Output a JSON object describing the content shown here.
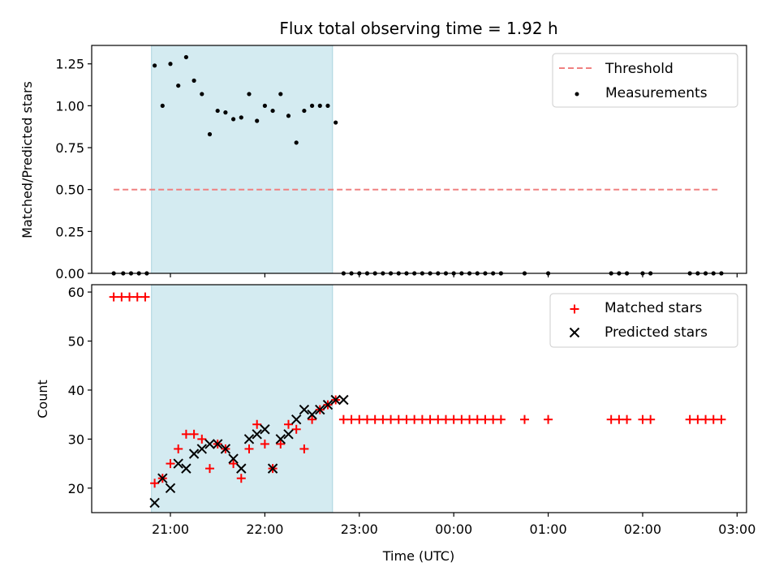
{
  "chart_data": [
    {
      "type": "scatter",
      "title": "Flux total observing time = 1.92 h",
      "xlabel": "",
      "ylabel": "Matched/Predicted stars",
      "xlim": [
        "20:10",
        "03:06"
      ],
      "ylim": [
        0,
        1.36
      ],
      "yticks": [
        0.0,
        0.25,
        0.5,
        0.75,
        1.0,
        1.25
      ],
      "ytick_labels": [
        "0.00",
        "0.25",
        "0.50",
        "0.75",
        "1.00",
        "1.25"
      ],
      "shaded_span": [
        "20:48",
        "22:43"
      ],
      "threshold": {
        "name": "Threshold",
        "value": 0.5,
        "x_range": [
          "20:24",
          "02:48"
        ],
        "color": "#f08080"
      },
      "series": [
        {
          "name": "Measurements",
          "color": "#000000",
          "points": [
            [
              "20:24",
              0
            ],
            [
              "20:30",
              0
            ],
            [
              "20:35",
              0
            ],
            [
              "20:40",
              0
            ],
            [
              "20:45",
              0
            ],
            [
              "20:50",
              1.24
            ],
            [
              "20:55",
              1.0
            ],
            [
              "21:00",
              1.25
            ],
            [
              "21:05",
              1.12
            ],
            [
              "21:10",
              1.29
            ],
            [
              "21:15",
              1.15
            ],
            [
              "21:20",
              1.07
            ],
            [
              "21:25",
              0.83
            ],
            [
              "21:30",
              0.97
            ],
            [
              "21:35",
              0.96
            ],
            [
              "21:40",
              0.92
            ],
            [
              "21:45",
              0.93
            ],
            [
              "21:50",
              1.07
            ],
            [
              "21:55",
              0.91
            ],
            [
              "22:00",
              1.0
            ],
            [
              "22:05",
              0.97
            ],
            [
              "22:10",
              1.07
            ],
            [
              "22:15",
              0.94
            ],
            [
              "22:20",
              0.78
            ],
            [
              "22:25",
              0.97
            ],
            [
              "22:30",
              1.0
            ],
            [
              "22:35",
              1.0
            ],
            [
              "22:40",
              1.0
            ],
            [
              "22:45",
              0.9
            ],
            [
              "22:50",
              0
            ],
            [
              "22:55",
              0
            ],
            [
              "23:00",
              0
            ],
            [
              "23:05",
              0
            ],
            [
              "23:10",
              0
            ],
            [
              "23:15",
              0
            ],
            [
              "23:20",
              0
            ],
            [
              "23:25",
              0
            ],
            [
              "23:30",
              0
            ],
            [
              "23:35",
              0
            ],
            [
              "23:40",
              0
            ],
            [
              "23:45",
              0
            ],
            [
              "23:50",
              0
            ],
            [
              "23:55",
              0
            ],
            [
              "00:00",
              0
            ],
            [
              "00:05",
              0
            ],
            [
              "00:10",
              0
            ],
            [
              "00:15",
              0
            ],
            [
              "00:20",
              0
            ],
            [
              "00:25",
              0
            ],
            [
              "00:30",
              0
            ],
            [
              "00:45",
              0
            ],
            [
              "01:00",
              0
            ],
            [
              "01:40",
              0
            ],
            [
              "01:45",
              0
            ],
            [
              "01:50",
              0
            ],
            [
              "02:00",
              0
            ],
            [
              "02:05",
              0
            ],
            [
              "02:30",
              0
            ],
            [
              "02:35",
              0
            ],
            [
              "02:40",
              0
            ],
            [
              "02:45",
              0
            ],
            [
              "02:50",
              0
            ]
          ]
        }
      ],
      "legend": {
        "placement": "top-right",
        "entries": [
          "Threshold",
          "Measurements"
        ]
      },
      "grid": false
    },
    {
      "type": "scatter",
      "title": "",
      "xlabel": "Time (UTC)",
      "ylabel": "Count",
      "xlim": [
        "20:10",
        "03:06"
      ],
      "ylim": [
        15,
        61.5
      ],
      "yticks": [
        20,
        30,
        40,
        50,
        60
      ],
      "ytick_labels": [
        "20",
        "30",
        "40",
        "50",
        "60"
      ],
      "xticks": [
        "21:00",
        "22:00",
        "23:00",
        "00:00",
        "01:00",
        "02:00",
        "03:00"
      ],
      "xtick_labels": [
        "21:00",
        "22:00",
        "23:00",
        "00:00",
        "01:00",
        "02:00",
        "03:00"
      ],
      "shaded_span": [
        "20:48",
        "22:43"
      ],
      "series": [
        {
          "name": "Matched stars",
          "marker": "plus",
          "color": "#ff0000",
          "points": [
            [
              "20:24",
              59
            ],
            [
              "20:29",
              59
            ],
            [
              "20:34",
              59
            ],
            [
              "20:39",
              59
            ],
            [
              "20:44",
              59
            ],
            [
              "20:50",
              21
            ],
            [
              "20:55",
              22
            ],
            [
              "21:00",
              25
            ],
            [
              "21:05",
              28
            ],
            [
              "21:10",
              31
            ],
            [
              "21:15",
              31
            ],
            [
              "21:20",
              30
            ],
            [
              "21:25",
              24
            ],
            [
              "21:30",
              29
            ],
            [
              "21:35",
              28
            ],
            [
              "21:40",
              25
            ],
            [
              "21:45",
              22
            ],
            [
              "21:50",
              28
            ],
            [
              "21:55",
              33
            ],
            [
              "22:00",
              29
            ],
            [
              "22:05",
              24
            ],
            [
              "22:10",
              29
            ],
            [
              "22:15",
              33
            ],
            [
              "22:20",
              32
            ],
            [
              "22:25",
              28
            ],
            [
              "22:30",
              34
            ],
            [
              "22:35",
              36
            ],
            [
              "22:40",
              37
            ],
            [
              "22:45",
              38
            ],
            [
              "22:50",
              34
            ],
            [
              "22:55",
              34
            ],
            [
              "23:00",
              34
            ],
            [
              "23:05",
              34
            ],
            [
              "23:10",
              34
            ],
            [
              "23:15",
              34
            ],
            [
              "23:20",
              34
            ],
            [
              "23:25",
              34
            ],
            [
              "23:30",
              34
            ],
            [
              "23:35",
              34
            ],
            [
              "23:40",
              34
            ],
            [
              "23:45",
              34
            ],
            [
              "23:50",
              34
            ],
            [
              "23:55",
              34
            ],
            [
              "00:00",
              34
            ],
            [
              "00:05",
              34
            ],
            [
              "00:10",
              34
            ],
            [
              "00:15",
              34
            ],
            [
              "00:20",
              34
            ],
            [
              "00:25",
              34
            ],
            [
              "00:30",
              34
            ],
            [
              "00:45",
              34
            ],
            [
              "01:00",
              34
            ],
            [
              "01:40",
              34
            ],
            [
              "01:45",
              34
            ],
            [
              "01:50",
              34
            ],
            [
              "02:00",
              34
            ],
            [
              "02:05",
              34
            ],
            [
              "02:30",
              34
            ],
            [
              "02:35",
              34
            ],
            [
              "02:40",
              34
            ],
            [
              "02:45",
              34
            ],
            [
              "02:50",
              34
            ]
          ]
        },
        {
          "name": "Predicted stars",
          "marker": "x",
          "color": "#000000",
          "points": [
            [
              "20:50",
              17
            ],
            [
              "20:55",
              22
            ],
            [
              "21:00",
              20
            ],
            [
              "21:05",
              25
            ],
            [
              "21:10",
              24
            ],
            [
              "21:15",
              27
            ],
            [
              "21:20",
              28
            ],
            [
              "21:25",
              29
            ],
            [
              "21:30",
              29
            ],
            [
              "21:35",
              28
            ],
            [
              "21:40",
              26
            ],
            [
              "21:45",
              24
            ],
            [
              "21:50",
              30
            ],
            [
              "21:55",
              31
            ],
            [
              "22:00",
              32
            ],
            [
              "22:05",
              24
            ],
            [
              "22:10",
              30
            ],
            [
              "22:15",
              31
            ],
            [
              "22:20",
              34
            ],
            [
              "22:25",
              36
            ],
            [
              "22:30",
              35
            ],
            [
              "22:35",
              36
            ],
            [
              "22:40",
              37
            ],
            [
              "22:45",
              38
            ],
            [
              "22:50",
              38
            ]
          ]
        }
      ],
      "legend": {
        "placement": "top-right",
        "entries": [
          "Matched stars",
          "Predicted stars"
        ]
      },
      "grid": false
    }
  ],
  "colors": {
    "shade": "#d4ebf1",
    "shade_edge": "#a9d3df"
  }
}
